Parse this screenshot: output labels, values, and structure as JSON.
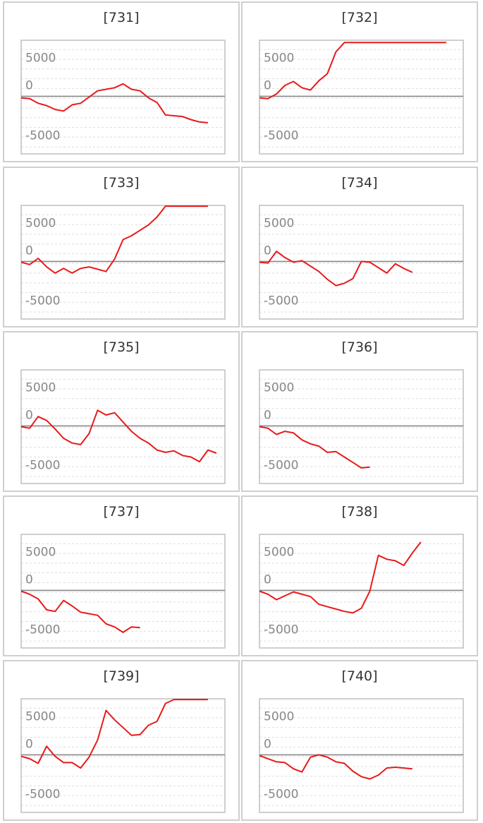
{
  "colors": {
    "line": "#e8191a",
    "zero": "#888888",
    "frame": "#bfbfbf",
    "grid": "#dddddd",
    "border": "#cfcfcf"
  },
  "chart_data": [
    {
      "type": "line",
      "title": "[731]",
      "yticks": [
        5000,
        0,
        -5000
      ],
      "ylim": [
        -5000,
        5000
      ],
      "values": [
        -200,
        -300,
        -900,
        -1200,
        -1700,
        -1900,
        -1100,
        -900,
        -100,
        700,
        900,
        1100,
        1600,
        900,
        700,
        -200,
        -800,
        -2400,
        -2500,
        -2600,
        -3000,
        -3300,
        -3400
      ]
    },
    {
      "type": "line",
      "title": "[732]",
      "yticks": [
        5000,
        0,
        -5000
      ],
      "ylim": [
        -5000,
        5000
      ],
      "values": [
        -200,
        -300,
        300,
        1400,
        1900,
        1100,
        800,
        2000,
        2900,
        5700,
        6900,
        6900,
        6900,
        6900,
        6900,
        6900,
        6900,
        6900,
        6900,
        6900,
        6900,
        6900,
        6900
      ]
    },
    {
      "type": "line",
      "title": "[733]",
      "yticks": [
        5000,
        0,
        -5000
      ],
      "ylim": [
        -5000,
        5000
      ],
      "values": [
        -100,
        -400,
        400,
        -700,
        -1500,
        -900,
        -1500,
        -900,
        -700,
        -1000,
        -1300,
        300,
        2800,
        3300,
        4000,
        4700,
        5700,
        7100,
        7100,
        7100,
        7100,
        7100,
        7100
      ]
    },
    {
      "type": "line",
      "title": "[734]",
      "yticks": [
        5000,
        0,
        -5000
      ],
      "ylim": [
        -5000,
        5000
      ],
      "values": [
        -100,
        -200,
        1300,
        500,
        -100,
        100,
        -600,
        -1300,
        -2300,
        -3100,
        -2800,
        -2200,
        0,
        -100,
        -800,
        -1500,
        -300,
        -900,
        -1400
      ]
    },
    {
      "type": "line",
      "title": "[735]",
      "yticks": [
        5000,
        0,
        -5000
      ],
      "ylim": [
        -5000,
        5000
      ],
      "values": [
        -100,
        -300,
        1200,
        700,
        -400,
        -1600,
        -2200,
        -2400,
        -1000,
        2000,
        1400,
        1700,
        500,
        -700,
        -1600,
        -2200,
        -3100,
        -3400,
        -3200,
        -3800,
        -4000,
        -4600,
        -3100,
        -3500
      ]
    },
    {
      "type": "line",
      "title": "[736]",
      "yticks": [
        5000,
        0,
        -5000
      ],
      "ylim": [
        -5000,
        5000
      ],
      "values": [
        -100,
        -300,
        -1100,
        -700,
        -900,
        -1800,
        -2300,
        -2600,
        -3400,
        -3300,
        -4000,
        -4700,
        -5400,
        -5300
      ]
    },
    {
      "type": "line",
      "title": "[737]",
      "yticks": [
        5000,
        0,
        -5000
      ],
      "ylim": [
        -5000,
        5000
      ],
      "values": [
        -100,
        -500,
        -1100,
        -2500,
        -2700,
        -1300,
        -2000,
        -2800,
        -3000,
        -3200,
        -4300,
        -4700,
        -5400,
        -4700,
        -4800
      ]
    },
    {
      "type": "line",
      "title": "[738]",
      "yticks": [
        5000,
        0,
        -5000
      ],
      "ylim": [
        -5000,
        5000
      ],
      "values": [
        -100,
        -500,
        -1200,
        -700,
        -200,
        -500,
        -800,
        -1800,
        -2100,
        -2400,
        -2700,
        -2900,
        -2300,
        -100,
        4500,
        4000,
        3800,
        3200,
        4800,
        6200
      ]
    },
    {
      "type": "line",
      "title": "[739]",
      "yticks": [
        5000,
        0,
        -5000
      ],
      "ylim": [
        -5000,
        5000
      ],
      "values": [
        -200,
        -500,
        -1100,
        1100,
        -200,
        -1000,
        -1000,
        -1700,
        -300,
        1900,
        5700,
        4500,
        3500,
        2500,
        2600,
        3800,
        4300,
        6600,
        7100,
        7100,
        7100,
        7100,
        7100
      ]
    },
    {
      "type": "line",
      "title": "[740]",
      "yticks": [
        5000,
        0,
        -5000
      ],
      "ylim": [
        -5000,
        5000
      ],
      "values": [
        -100,
        -500,
        -900,
        -1000,
        -1800,
        -2200,
        -300,
        0,
        -300,
        -900,
        -1100,
        -2100,
        -2800,
        -3100,
        -2600,
        -1700,
        -1600,
        -1700,
        -1800
      ]
    }
  ]
}
